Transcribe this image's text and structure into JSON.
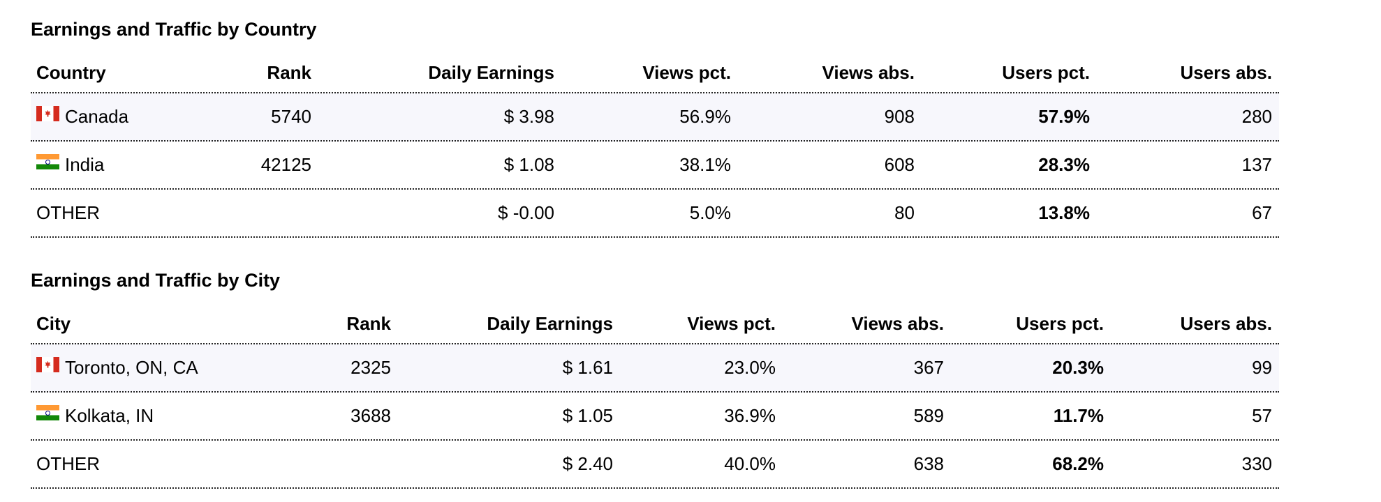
{
  "country_table": {
    "title": "Earnings and Traffic by Country",
    "headers": {
      "name": "Country",
      "rank": "Rank",
      "earnings": "Daily Earnings",
      "views_pct": "Views pct.",
      "views_abs": "Views abs.",
      "users_pct": "Users pct.",
      "users_abs": "Users abs."
    },
    "rows": [
      {
        "flag": "canada-flag-icon",
        "name": "Canada",
        "rank": "5740",
        "earnings": "$ 3.98",
        "views_pct": "56.9%",
        "views_abs": "908",
        "users_pct": "57.9%",
        "users_abs": "280"
      },
      {
        "flag": "india-flag-icon",
        "name": "India",
        "rank": "42125",
        "earnings": "$ 1.08",
        "views_pct": "38.1%",
        "views_abs": "608",
        "users_pct": "28.3%",
        "users_abs": "137"
      },
      {
        "flag": "",
        "name": "OTHER",
        "rank": "",
        "earnings": "$ -0.00",
        "views_pct": "5.0%",
        "views_abs": "80",
        "users_pct": "13.8%",
        "users_abs": "67"
      }
    ]
  },
  "city_table": {
    "title": "Earnings and Traffic by City",
    "headers": {
      "name": "City",
      "rank": "Rank",
      "earnings": "Daily Earnings",
      "views_pct": "Views pct.",
      "views_abs": "Views abs.",
      "users_pct": "Users pct.",
      "users_abs": "Users abs."
    },
    "rows": [
      {
        "flag": "canada-flag-icon",
        "name": "Toronto, ON, CA",
        "rank": "2325",
        "earnings": "$ 1.61",
        "views_pct": "23.0%",
        "views_abs": "367",
        "users_pct": "20.3%",
        "users_abs": "99"
      },
      {
        "flag": "india-flag-icon",
        "name": "Kolkata, IN",
        "rank": "3688",
        "earnings": "$ 1.05",
        "views_pct": "36.9%",
        "views_abs": "589",
        "users_pct": "11.7%",
        "users_abs": "57"
      },
      {
        "flag": "",
        "name": "OTHER",
        "rank": "",
        "earnings": "$ 2.40",
        "views_pct": "40.0%",
        "views_abs": "638",
        "users_pct": "68.2%",
        "users_abs": "330"
      }
    ]
  },
  "colors": {
    "alt_row_background": "#f7f7fc",
    "canada_red": "#d52b1e",
    "india_saffron": "#ff9933",
    "india_green": "#138808"
  }
}
